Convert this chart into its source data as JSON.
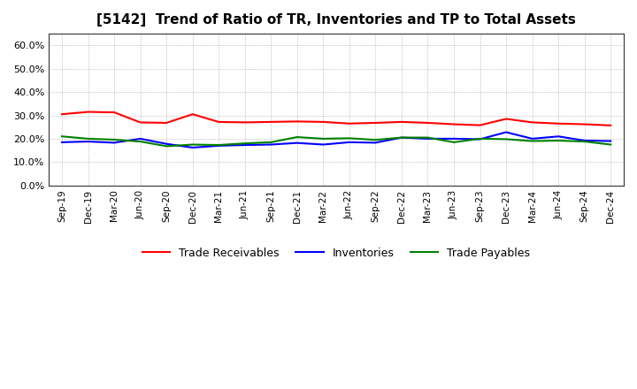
{
  "title": "[5142]  Trend of Ratio of TR, Inventories and TP to Total Assets",
  "x_labels": [
    "Sep-19",
    "Dec-19",
    "Mar-20",
    "Jun-20",
    "Sep-20",
    "Dec-20",
    "Mar-21",
    "Jun-21",
    "Sep-21",
    "Dec-21",
    "Mar-22",
    "Jun-22",
    "Sep-22",
    "Dec-22",
    "Mar-23",
    "Jun-23",
    "Sep-23",
    "Dec-23",
    "Mar-24",
    "Jun-24",
    "Sep-24",
    "Dec-24"
  ],
  "trade_receivables": [
    0.305,
    0.315,
    0.313,
    0.27,
    0.268,
    0.305,
    0.272,
    0.27,
    0.272,
    0.274,
    0.272,
    0.265,
    0.268,
    0.272,
    0.268,
    0.262,
    0.258,
    0.285,
    0.27,
    0.265,
    0.262,
    0.257
  ],
  "inventories": [
    0.185,
    0.188,
    0.183,
    0.2,
    0.178,
    0.162,
    0.17,
    0.173,
    0.175,
    0.182,
    0.175,
    0.185,
    0.183,
    0.205,
    0.2,
    0.2,
    0.198,
    0.228,
    0.2,
    0.21,
    0.192,
    0.19
  ],
  "trade_payables": [
    0.21,
    0.2,
    0.196,
    0.188,
    0.168,
    0.175,
    0.173,
    0.18,
    0.185,
    0.207,
    0.2,
    0.202,
    0.195,
    0.205,
    0.205,
    0.185,
    0.2,
    0.198,
    0.19,
    0.192,
    0.188,
    0.175
  ],
  "tr_color": "#ff0000",
  "inv_color": "#0000ff",
  "tp_color": "#008000",
  "ylim": [
    0.0,
    0.65
  ],
  "yticks": [
    0.0,
    0.1,
    0.2,
    0.3,
    0.4,
    0.5,
    0.6
  ],
  "background_color": "#ffffff",
  "grid_color": "#999999",
  "legend_labels": [
    "Trade Receivables",
    "Inventories",
    "Trade Payables"
  ]
}
